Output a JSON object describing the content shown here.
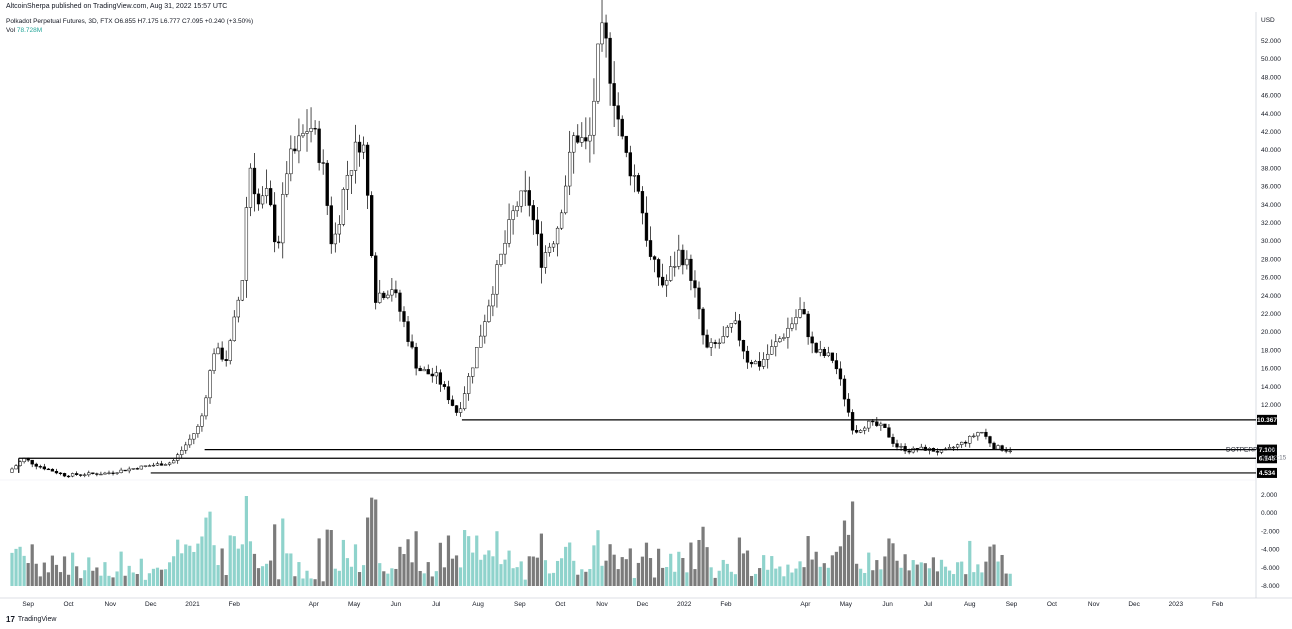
{
  "header": {
    "publish_line": "AltcoinSherpa published on TradingView.com, Aug 31, 2022 15:57 UTC"
  },
  "legend": {
    "symbol_line": "Polkadot Perpetual Futures, 3D, FTX",
    "ohlc": "O6.855 H7.175 L6.777 C7.095 +0.240 (+3.50%)",
    "vol_label": "Vol",
    "vol_value": "78.728M"
  },
  "footer": {
    "brand": "TradingView",
    "logo_glyph": "17"
  },
  "colors": {
    "up": "#ffffff",
    "down": "#000000",
    "vol_up": "#8fd3cc",
    "vol_down": "#7b7b7b"
  },
  "chart_data": {
    "type": "candlestick",
    "currency_label": "USD",
    "price_axis_ticks": [
      "52.000",
      "50.000",
      "48.000",
      "46.000",
      "44.000",
      "42.000",
      "40.000",
      "38.000",
      "36.000",
      "34.000",
      "32.000",
      "30.000",
      "28.000",
      "26.000",
      "24.000",
      "22.000",
      "20.000",
      "18.000",
      "16.000",
      "14.000",
      "12.000"
    ],
    "volume_axis_ticks": [
      "2.000",
      "0.000",
      "-2.000",
      "-4.000",
      "-6.000",
      "-8.000"
    ],
    "time_axis_labels": [
      "Sep",
      "Oct",
      "Nov",
      "Dec",
      "2021",
      "Feb",
      "Apr",
      "May",
      "Jun",
      "Jul",
      "Aug",
      "Sep",
      "Oct",
      "Nov",
      "Dec",
      "2022",
      "Feb",
      "Apr",
      "May",
      "Jun",
      "Jul",
      "Aug",
      "Sep",
      "Oct",
      "Nov",
      "Dec",
      "2023",
      "Feb"
    ],
    "horizontal_levels": [
      {
        "value": 10.367,
        "label": "10.367"
      },
      {
        "value": 7.1,
        "label": "7.100"
      },
      {
        "value": 6.145,
        "label": "6.145"
      },
      {
        "value": 4.534,
        "label": "4.534"
      }
    ],
    "last_price": {
      "label": "7.095",
      "symbol": "DOTPERP",
      "countdown": "08:02:15"
    },
    "price_path": [
      [
        "2020-08-20",
        4.6
      ],
      [
        "2020-09-01",
        6.1
      ],
      [
        "2020-09-10",
        5.4
      ],
      [
        "2020-10-01",
        4.3
      ],
      [
        "2020-11-01",
        4.5
      ],
      [
        "2020-12-01",
        5.3
      ],
      [
        "2020-12-20",
        5.7
      ],
      [
        "2021-01-01",
        8.0
      ],
      [
        "2021-01-10",
        10.0
      ],
      [
        "2021-01-20",
        18.0
      ],
      [
        "2021-01-30",
        17.0
      ],
      [
        "2021-02-10",
        26.0
      ],
      [
        "2021-02-15",
        39.0
      ],
      [
        "2021-02-22",
        34.0
      ],
      [
        "2021-03-01",
        35.0
      ],
      [
        "2021-03-08",
        29.0
      ],
      [
        "2021-03-15",
        38.0
      ],
      [
        "2021-04-01",
        43.0
      ],
      [
        "2021-04-10",
        39.0
      ],
      [
        "2021-04-18",
        29.0
      ],
      [
        "2021-04-28",
        37.0
      ],
      [
        "2021-05-10",
        42.0
      ],
      [
        "2021-05-20",
        24.0
      ],
      [
        "2021-06-01",
        25.0
      ],
      [
        "2021-06-10",
        21.0
      ],
      [
        "2021-06-20",
        16.0
      ],
      [
        "2021-07-05",
        15.0
      ],
      [
        "2021-07-20",
        11.0
      ],
      [
        "2021-08-01",
        17.0
      ],
      [
        "2021-08-15",
        25.0
      ],
      [
        "2021-09-01",
        34.0
      ],
      [
        "2021-09-10",
        35.0
      ],
      [
        "2021-09-20",
        28.0
      ],
      [
        "2021-10-01",
        31.0
      ],
      [
        "2021-10-15",
        42.0
      ],
      [
        "2021-10-25",
        40.0
      ],
      [
        "2021-11-01",
        50.0
      ],
      [
        "2021-11-05",
        53.0
      ],
      [
        "2021-11-12",
        47.0
      ],
      [
        "2021-11-20",
        40.0
      ],
      [
        "2021-12-01",
        36.0
      ],
      [
        "2021-12-10",
        28.0
      ],
      [
        "2021-12-20",
        25.0
      ],
      [
        "2022-01-01",
        29.0
      ],
      [
        "2022-01-10",
        26.0
      ],
      [
        "2022-01-20",
        18.0
      ],
      [
        "2022-02-01",
        19.0
      ],
      [
        "2022-02-10",
        21.0
      ],
      [
        "2022-02-20",
        17.0
      ],
      [
        "2022-03-01",
        16.5
      ],
      [
        "2022-03-20",
        20.0
      ],
      [
        "2022-04-01",
        22.5
      ],
      [
        "2022-04-10",
        18.0
      ],
      [
        "2022-04-25",
        17.0
      ],
      [
        "2022-05-01",
        14.0
      ],
      [
        "2022-05-10",
        9.0
      ],
      [
        "2022-05-20",
        10.0
      ],
      [
        "2022-06-01",
        9.5
      ],
      [
        "2022-06-10",
        7.5
      ],
      [
        "2022-06-20",
        7.0
      ],
      [
        "2022-07-01",
        7.2
      ],
      [
        "2022-07-15",
        6.8
      ],
      [
        "2022-08-01",
        8.0
      ],
      [
        "2022-08-12",
        9.2
      ],
      [
        "2022-08-22",
        7.4
      ],
      [
        "2022-08-31",
        7.095
      ]
    ]
  }
}
